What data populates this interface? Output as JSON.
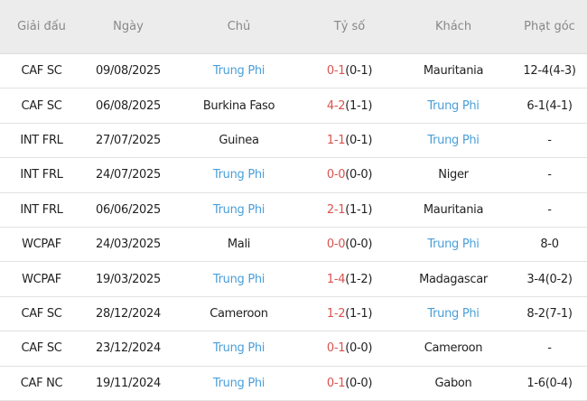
{
  "headers": [
    "Giải đấu",
    "Ngày",
    "Chủ",
    "Tỷ số",
    "Khách",
    "Phạt góc"
  ],
  "highlight_team": "Trung Phi",
  "colors": {
    "highlight": "#4a9fd8",
    "score": "#d9534f",
    "header_bg": "#ececec"
  },
  "rows": [
    {
      "league": "CAF SC",
      "date": "09/08/2025",
      "home": "Trung Phi",
      "ft": "0-1",
      "ht": "(0-1)",
      "away": "Mauritania",
      "corners": "12-4(4-3)"
    },
    {
      "league": "CAF SC",
      "date": "06/08/2025",
      "home": "Burkina Faso",
      "ft": "4-2",
      "ht": "(1-1)",
      "away": "Trung Phi",
      "corners": "6-1(4-1)"
    },
    {
      "league": "INT FRL",
      "date": "27/07/2025",
      "home": "Guinea",
      "ft": "1-1",
      "ht": "(0-1)",
      "away": "Trung Phi",
      "corners": "-"
    },
    {
      "league": "INT FRL",
      "date": "24/07/2025",
      "home": "Trung Phi",
      "ft": "0-0",
      "ht": "(0-0)",
      "away": "Niger",
      "corners": "-"
    },
    {
      "league": "INT FRL",
      "date": "06/06/2025",
      "home": "Trung Phi",
      "ft": "2-1",
      "ht": "(1-1)",
      "away": "Mauritania",
      "corners": "-"
    },
    {
      "league": "WCPAF",
      "date": "24/03/2025",
      "home": "Mali",
      "ft": "0-0",
      "ht": "(0-0)",
      "away": "Trung Phi",
      "corners": "8-0"
    },
    {
      "league": "WCPAF",
      "date": "19/03/2025",
      "home": "Trung Phi",
      "ft": "1-4",
      "ht": "(1-2)",
      "away": "Madagascar",
      "corners": "3-4(0-2)"
    },
    {
      "league": "CAF SC",
      "date": "28/12/2024",
      "home": "Cameroon",
      "ft": "1-2",
      "ht": "(1-1)",
      "away": "Trung Phi",
      "corners": "8-2(7-1)"
    },
    {
      "league": "CAF SC",
      "date": "23/12/2024",
      "home": "Trung Phi",
      "ft": "0-1",
      "ht": "(0-0)",
      "away": "Cameroon",
      "corners": "-"
    },
    {
      "league": "CAF NC",
      "date": "19/11/2024",
      "home": "Trung Phi",
      "ft": "0-1",
      "ht": "(0-0)",
      "away": "Gabon",
      "corners": "1-6(0-4)"
    }
  ]
}
